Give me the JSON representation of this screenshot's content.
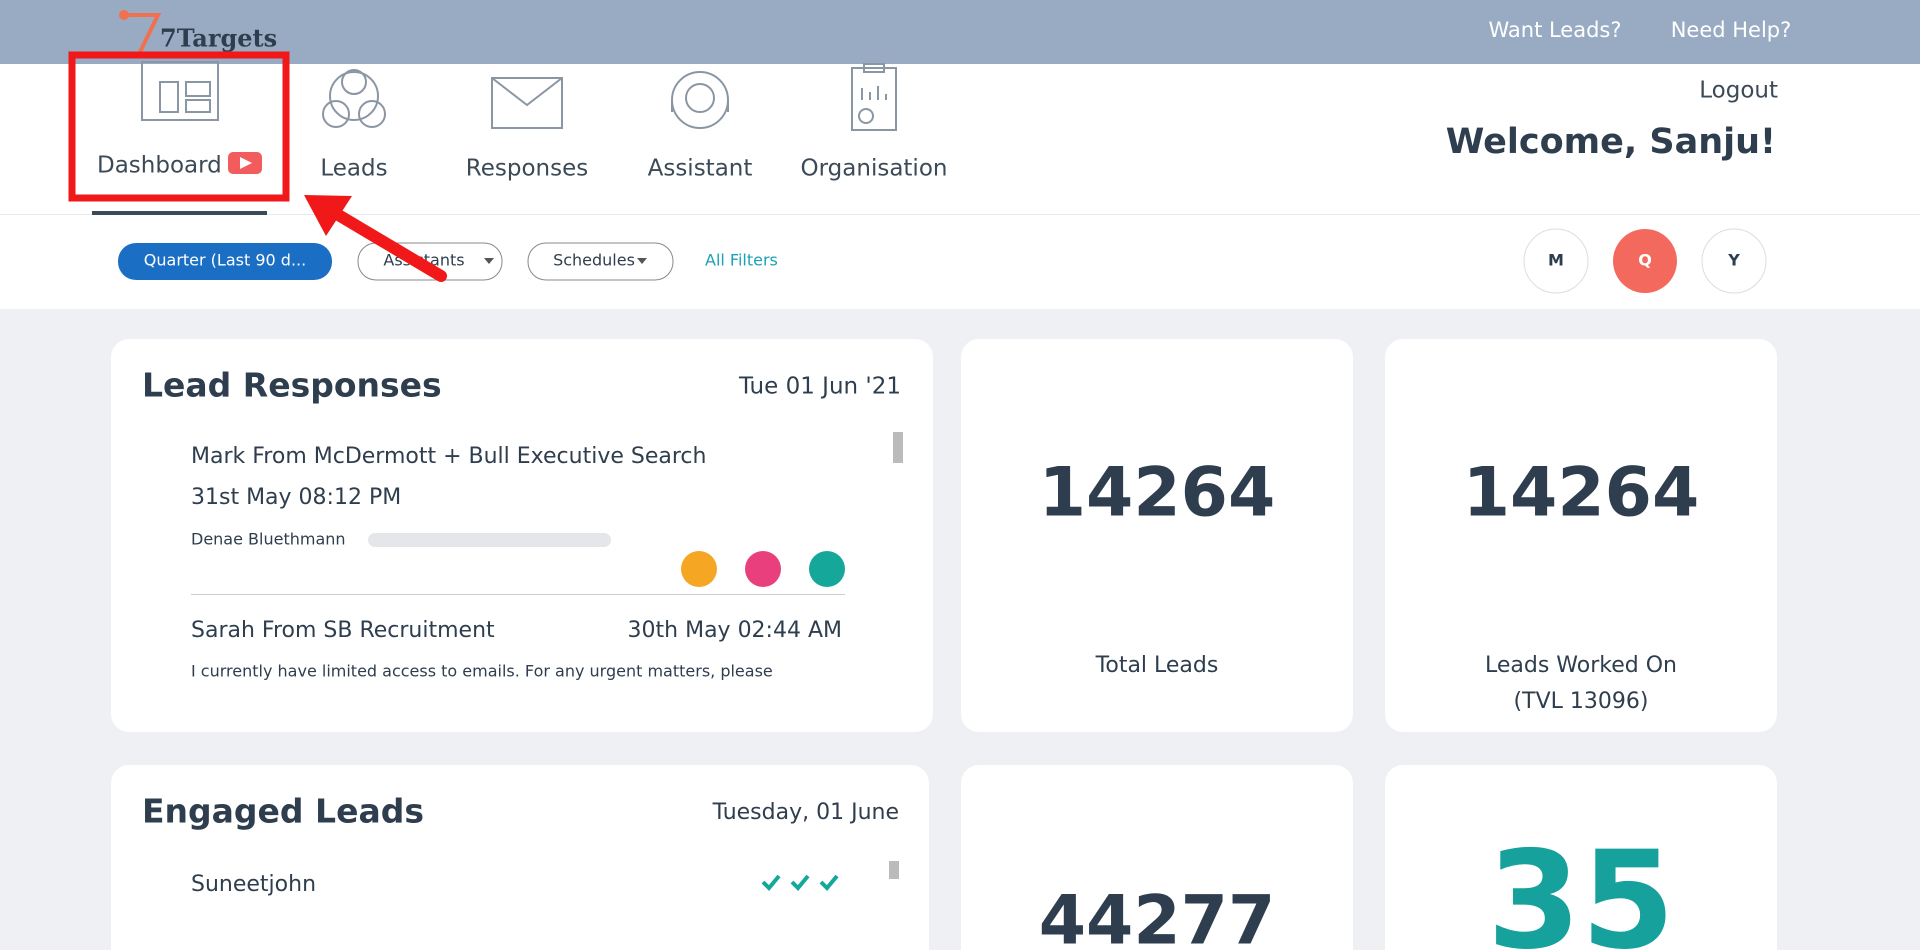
{
  "header": {
    "brand": "7Targets",
    "links": [
      "Want Leads?",
      "Need Help?"
    ],
    "logout": "Logout",
    "welcome": "Welcome, Sanju!"
  },
  "nav": [
    "Dashboard",
    "Leads",
    "Responses",
    "Assistant",
    "Organisation"
  ],
  "filters": {
    "period": "Quarter (Last 90 d...",
    "assistants": "Assistants",
    "schedules": "Schedules",
    "all": "All Filters",
    "toggles": [
      "M",
      "Q",
      "Y"
    ]
  },
  "lead_responses": {
    "title": "Lead Responses",
    "date": "Tue 01 Jun '21",
    "items": [
      {
        "subject": "Mark From McDermott + Bull Executive Search",
        "time": "31st May 08:12 PM",
        "contact": "Denae Bluethmann"
      },
      {
        "subject": "Sarah From SB Recruitment",
        "time": "30th May 02:44 AM",
        "preview": "I currently have limited access to emails. For any urgent matters, please"
      }
    ]
  },
  "stats": [
    {
      "value": 14264,
      "label": "Total Leads"
    },
    {
      "value": 14264,
      "label": [
        "Leads Worked On",
        "(TVL 13096)"
      ]
    },
    {
      "value": 44277
    },
    {
      "value": 35
    }
  ],
  "engaged_leads": {
    "title": "Engaged Leads",
    "date": "Tuesday, 01 June",
    "items": [
      "Suneetjohn"
    ]
  }
}
